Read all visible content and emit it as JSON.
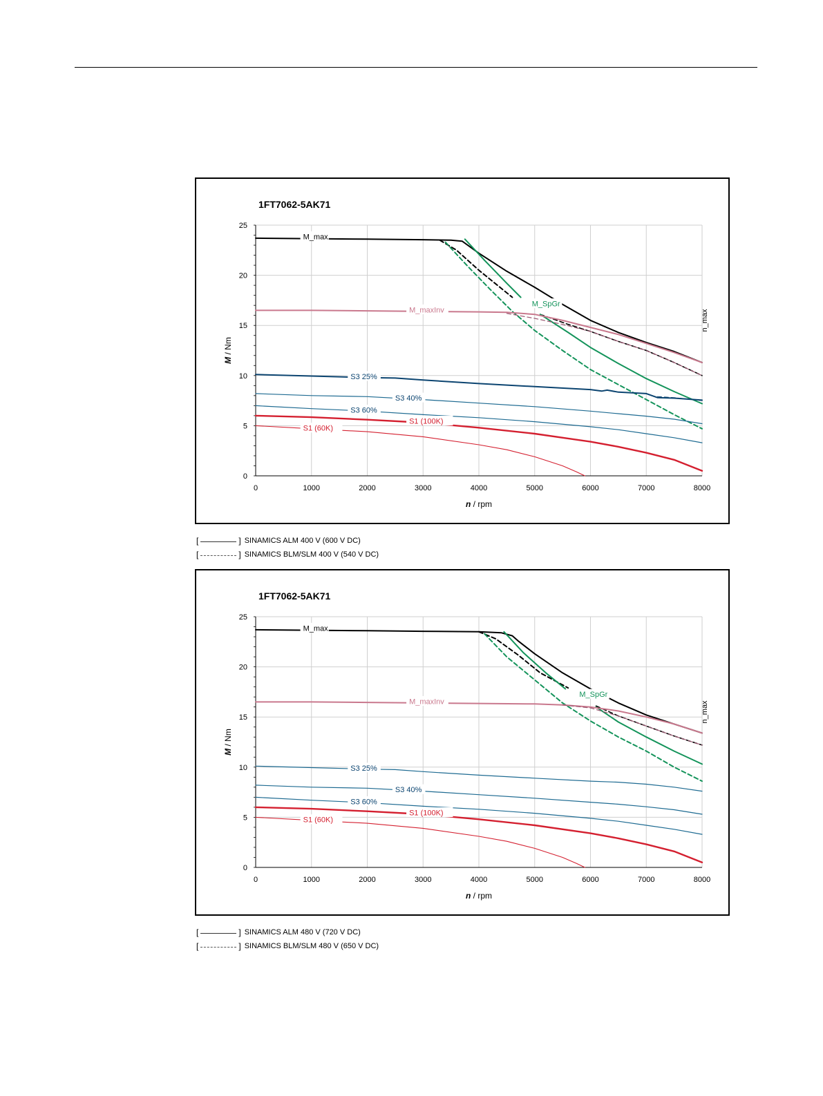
{
  "chart_data": [
    {
      "type": "line",
      "title": "1FT7062-5AK71",
      "xlabel_var": "n",
      "xlabel_unit": " / rpm",
      "ylabel_var": "M",
      "ylabel_unit": " / Nm",
      "xlim": [
        0,
        8000
      ],
      "ylim": [
        0,
        25
      ],
      "xticks": [
        0,
        1000,
        2000,
        3000,
        4000,
        5000,
        6000,
        7000,
        8000
      ],
      "yticks": [
        0,
        5,
        10,
        15,
        20,
        25
      ],
      "grid": true,
      "annotation_nmax": "n_max",
      "series": [
        {
          "name": "M_max",
          "color": "#000000",
          "width": 2,
          "dash": false,
          "x": [
            0,
            1000,
            2000,
            3000,
            3500,
            3700,
            3850,
            4000,
            4500,
            5000,
            5500,
            6000,
            6500,
            7000,
            7500,
            8000
          ],
          "y": [
            23.7,
            23.65,
            23.6,
            23.55,
            23.5,
            23.4,
            22.8,
            22.2,
            20.4,
            18.8,
            17.1,
            15.5,
            14.3,
            13.3,
            12.4,
            11.3
          ]
        },
        {
          "name": "",
          "color": "#000000",
          "width": 2,
          "dash": true,
          "x": [
            3300,
            3600,
            4000,
            4600
          ],
          "y": [
            23.5,
            22.5,
            20.5,
            17.8
          ]
        },
        {
          "name": "",
          "color": "#000000",
          "width": 1.6,
          "dash": true,
          "x": [
            5100,
            5600,
            6000,
            6500,
            7000,
            7500,
            8000
          ],
          "y": [
            16.1,
            15.1,
            14.4,
            13.4,
            12.5,
            11.3,
            10.0
          ]
        },
        {
          "name": "M_SpGr",
          "color": "#13935a",
          "width": 2,
          "dash": false,
          "x": [
            3750,
            4100,
            4500,
            4750
          ],
          "y": [
            23.6,
            21.5,
            19.2,
            17.8
          ]
        },
        {
          "name": "",
          "color": "#13935a",
          "width": 2,
          "dash": false,
          "x": [
            5100,
            5600,
            6000,
            6500,
            7000,
            7500,
            8000
          ],
          "y": [
            16.1,
            14.3,
            12.8,
            11.2,
            9.7,
            8.4,
            7.2
          ]
        },
        {
          "name": "",
          "color": "#13935a",
          "width": 2,
          "dash": true,
          "x": [
            3400,
            3800,
            4200,
            4600,
            5000,
            5500,
            6000,
            6500,
            7000,
            7500,
            8000
          ],
          "y": [
            23.3,
            20.9,
            18.6,
            16.4,
            14.5,
            12.5,
            10.6,
            9.1,
            7.6,
            6.1,
            4.7
          ]
        },
        {
          "name": "M_maxInv",
          "color": "#c9788d",
          "width": 2,
          "dash": false,
          "x": [
            0,
            1000,
            2000,
            3000,
            4000,
            4500,
            5000,
            5500,
            6000,
            6500,
            7000,
            7500,
            8000
          ],
          "y": [
            16.5,
            16.5,
            16.45,
            16.4,
            16.35,
            16.3,
            16.1,
            15.5,
            14.8,
            14.1,
            13.2,
            12.3,
            11.3
          ]
        },
        {
          "name": "",
          "color": "#9b5670",
          "width": 1.2,
          "dash": true,
          "x": [
            4500,
            5000,
            5500,
            6000,
            6500,
            7000,
            7500,
            8000
          ],
          "y": [
            16.2,
            15.7,
            15.1,
            14.4,
            13.4,
            12.5,
            11.3,
            10.0
          ]
        },
        {
          "name": "S3 25%",
          "color": "#0b4470",
          "width": 2,
          "dash": false,
          "x": [
            0,
            1000,
            2000,
            2500,
            3000,
            4000,
            5000,
            6000,
            6200,
            6300,
            6500,
            7000,
            7200,
            7500,
            8000
          ],
          "y": [
            10.1,
            9.95,
            9.8,
            9.75,
            9.55,
            9.2,
            8.9,
            8.6,
            8.45,
            8.55,
            8.35,
            8.2,
            7.8,
            7.75,
            7.55
          ]
        },
        {
          "name": "",
          "color": "#0b4470",
          "width": 1,
          "dash": true,
          "x": [
            7200,
            7500,
            8000
          ],
          "y": [
            7.9,
            7.8,
            7.5
          ]
        },
        {
          "name": "S3 40%",
          "color": "#1d6a91",
          "width": 1.2,
          "dash": false,
          "x": [
            0,
            1000,
            2000,
            3000,
            4000,
            5000,
            6000,
            6500,
            7000,
            7500,
            8000
          ],
          "y": [
            8.2,
            8.0,
            7.9,
            7.6,
            7.25,
            6.9,
            6.45,
            6.2,
            5.95,
            5.65,
            5.2
          ]
        },
        {
          "name": "S3 60%",
          "color": "#1d6a91",
          "width": 1.2,
          "dash": false,
          "x": [
            0,
            1000,
            2000,
            3000,
            4000,
            5000,
            6000,
            6500,
            7000,
            7500,
            8000
          ],
          "y": [
            7.0,
            6.7,
            6.45,
            6.1,
            5.8,
            5.4,
            4.9,
            4.6,
            4.2,
            3.8,
            3.3
          ]
        },
        {
          "name": "S1 (100K)",
          "color": "#d41f2f",
          "width": 2.4,
          "dash": false,
          "x": [
            0,
            1000,
            2000,
            3000,
            4000,
            5000,
            6000,
            6500,
            7000,
            7500,
            8000
          ],
          "y": [
            6.0,
            5.85,
            5.6,
            5.3,
            4.8,
            4.2,
            3.4,
            2.9,
            2.3,
            1.6,
            0.5
          ]
        },
        {
          "name": "S1 (60K)",
          "color": "#d41f2f",
          "width": 1.1,
          "dash": false,
          "x": [
            0,
            1000,
            2000,
            3000,
            4000,
            4500,
            5000,
            5500,
            5750,
            5900
          ],
          "y": [
            5.0,
            4.7,
            4.4,
            3.9,
            3.1,
            2.6,
            1.9,
            1.0,
            0.4,
            0
          ]
        }
      ],
      "labels": [
        {
          "text": "M_max",
          "color": "#000000",
          "x": 850,
          "y": 23.7
        },
        {
          "text": "M_SpGr",
          "color": "#13935a",
          "x": 4950,
          "y": 17.0
        },
        {
          "text": "M_maxInv",
          "color": "#c9788d",
          "x": 2750,
          "y": 16.4
        },
        {
          "text": "S3 25%",
          "color": "#0b4470",
          "x": 1700,
          "y": 9.75
        },
        {
          "text": "S3 40%",
          "color": "#0b4470",
          "x": 2500,
          "y": 7.6
        },
        {
          "text": "S3 60%",
          "color": "#0b4470",
          "x": 1700,
          "y": 6.4
        },
        {
          "text": "S1 (100K)",
          "color": "#d41f2f",
          "x": 2750,
          "y": 5.3
        },
        {
          "text": "S1 (60K)",
          "color": "#d41f2f",
          "x": 850,
          "y": 4.6
        }
      ]
    },
    {
      "type": "line",
      "title": "1FT7062-5AK71",
      "xlabel_var": "n",
      "xlabel_unit": " / rpm",
      "ylabel_var": "M",
      "ylabel_unit": " / Nm",
      "xlim": [
        0,
        8000
      ],
      "ylim": [
        0,
        25
      ],
      "xticks": [
        0,
        1000,
        2000,
        3000,
        4000,
        5000,
        6000,
        7000,
        8000
      ],
      "yticks": [
        0,
        5,
        10,
        15,
        20,
        25
      ],
      "grid": true,
      "annotation_nmax": "n_max",
      "series": [
        {
          "name": "M_max",
          "color": "#000000",
          "width": 2,
          "dash": false,
          "x": [
            0,
            1000,
            2000,
            3000,
            4000,
            4400,
            4600,
            4700,
            5000,
            5500,
            6000,
            6500,
            7000,
            7500,
            8000
          ],
          "y": [
            23.7,
            23.65,
            23.6,
            23.55,
            23.5,
            23.4,
            23.1,
            22.6,
            21.3,
            19.4,
            17.8,
            16.4,
            15.2,
            14.3,
            13.4
          ]
        },
        {
          "name": "",
          "color": "#000000",
          "width": 2,
          "dash": true,
          "x": [
            4000,
            4300,
            4700,
            5100,
            5600
          ],
          "y": [
            23.5,
            22.8,
            21.2,
            19.4,
            17.9
          ]
        },
        {
          "name": "",
          "color": "#000000",
          "width": 1.6,
          "dash": true,
          "x": [
            6100,
            6500,
            7000,
            7500,
            8000
          ],
          "y": [
            16.1,
            15.1,
            14.1,
            13.1,
            12.2
          ]
        },
        {
          "name": "M_SpGr",
          "color": "#13935a",
          "width": 2,
          "dash": false,
          "x": [
            4450,
            4800,
            5200,
            5550
          ],
          "y": [
            23.5,
            21.4,
            19.4,
            17.8
          ]
        },
        {
          "name": "",
          "color": "#13935a",
          "width": 2,
          "dash": false,
          "x": [
            6100,
            6500,
            7000,
            7500,
            8000
          ],
          "y": [
            16.0,
            14.5,
            13.0,
            11.6,
            10.3
          ]
        },
        {
          "name": "",
          "color": "#13935a",
          "width": 2,
          "dash": true,
          "x": [
            4100,
            4500,
            5000,
            5500,
            6000,
            6500,
            7000,
            7500,
            8000
          ],
          "y": [
            23.3,
            21.0,
            18.7,
            16.4,
            14.6,
            13.0,
            11.6,
            10.0,
            8.6
          ]
        },
        {
          "name": "M_maxInv",
          "color": "#c9788d",
          "width": 2,
          "dash": false,
          "x": [
            0,
            1000,
            2000,
            3000,
            4000,
            5000,
            5500,
            6000,
            6500,
            7000,
            7500,
            8000
          ],
          "y": [
            16.5,
            16.5,
            16.45,
            16.4,
            16.35,
            16.3,
            16.2,
            16.0,
            15.6,
            15.0,
            14.3,
            13.4
          ]
        },
        {
          "name": "",
          "color": "#9b5670",
          "width": 1.2,
          "dash": true,
          "x": [
            5500,
            6000,
            6500,
            7000,
            7500,
            8000
          ],
          "y": [
            16.2,
            15.9,
            15.1,
            14.1,
            13.1,
            12.2
          ]
        },
        {
          "name": "S3 25%",
          "color": "#1d6a91",
          "width": 1.2,
          "dash": false,
          "x": [
            0,
            1000,
            2000,
            2500,
            3000,
            4000,
            5000,
            6000,
            6500,
            7000,
            7500,
            8000
          ],
          "y": [
            10.1,
            9.95,
            9.8,
            9.75,
            9.55,
            9.2,
            8.9,
            8.6,
            8.5,
            8.3,
            8.0,
            7.6
          ]
        },
        {
          "name": "S3 40%",
          "color": "#1d6a91",
          "width": 1.2,
          "dash": false,
          "x": [
            0,
            1000,
            2000,
            3000,
            4000,
            5000,
            6000,
            6500,
            7000,
            7500,
            8000
          ],
          "y": [
            8.2,
            8.0,
            7.9,
            7.6,
            7.25,
            6.9,
            6.5,
            6.3,
            6.05,
            5.75,
            5.3
          ]
        },
        {
          "name": "S3 60%",
          "color": "#1d6a91",
          "width": 1.2,
          "dash": false,
          "x": [
            0,
            1000,
            2000,
            3000,
            4000,
            5000,
            6000,
            6500,
            7000,
            7500,
            8000
          ],
          "y": [
            7.0,
            6.7,
            6.45,
            6.1,
            5.8,
            5.4,
            4.9,
            4.6,
            4.2,
            3.8,
            3.3
          ]
        },
        {
          "name": "S1 (100K)",
          "color": "#d41f2f",
          "width": 2.4,
          "dash": false,
          "x": [
            0,
            1000,
            2000,
            3000,
            4000,
            5000,
            6000,
            6500,
            7000,
            7500,
            8000
          ],
          "y": [
            6.0,
            5.85,
            5.6,
            5.3,
            4.8,
            4.2,
            3.4,
            2.9,
            2.3,
            1.6,
            0.5
          ]
        },
        {
          "name": "S1 (60K)",
          "color": "#d41f2f",
          "width": 1.1,
          "dash": false,
          "x": [
            0,
            1000,
            2000,
            3000,
            4000,
            4500,
            5000,
            5500,
            5750,
            5900
          ],
          "y": [
            5.0,
            4.7,
            4.4,
            3.9,
            3.1,
            2.6,
            1.9,
            1.0,
            0.4,
            0
          ]
        }
      ],
      "labels": [
        {
          "text": "M_max",
          "color": "#000000",
          "x": 850,
          "y": 23.7
        },
        {
          "text": "M_SpGr",
          "color": "#13935a",
          "x": 5800,
          "y": 17.1
        },
        {
          "text": "M_maxInv",
          "color": "#c9788d",
          "x": 2750,
          "y": 16.4
        },
        {
          "text": "S3 25%",
          "color": "#0b4470",
          "x": 1700,
          "y": 9.75
        },
        {
          "text": "S3 40%",
          "color": "#0b4470",
          "x": 2500,
          "y": 7.6
        },
        {
          "text": "S3 60%",
          "color": "#0b4470",
          "x": 1700,
          "y": 6.4
        },
        {
          "text": "S1 (100K)",
          "color": "#d41f2f",
          "x": 2750,
          "y": 5.3
        },
        {
          "text": "S1 (60K)",
          "color": "#d41f2f",
          "x": 850,
          "y": 4.6
        }
      ]
    }
  ],
  "legends": [
    [
      {
        "style": "solid",
        "text": "SINAMICS ALM 400 V (600 V DC)"
      },
      {
        "style": "dashed",
        "text": "SINAMICS BLM/SLM 400 V (540 V DC)"
      }
    ],
    [
      {
        "style": "solid",
        "text": "SINAMICS ALM 480 V (720 V DC)"
      },
      {
        "style": "dashed",
        "text": "SINAMICS BLM/SLM 480 V (650 V DC)"
      }
    ]
  ],
  "legend_brackets": {
    "open": "[",
    "close": "]"
  }
}
